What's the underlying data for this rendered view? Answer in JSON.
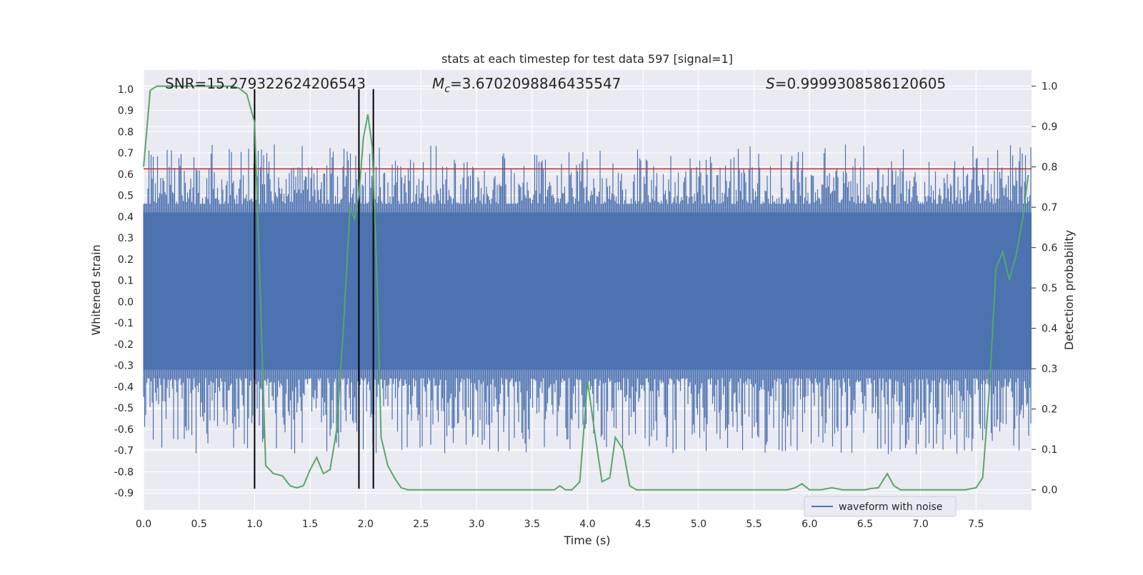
{
  "chart_data": {
    "type": "line",
    "title": "stats at each timestep for test data 597 [signal=1]",
    "xlabel": "Time (s)",
    "ylabel_left": "Whitened strain",
    "ylabel_right": "Detection probability",
    "xlim": [
      0.0,
      8.0
    ],
    "ylim_left": [
      -0.98,
      1.09
    ],
    "ylim_right": [
      -0.05,
      1.04
    ],
    "x_ticks": [
      "0.0",
      "0.5",
      "1.0",
      "1.5",
      "2.0",
      "2.5",
      "3.0",
      "3.5",
      "4.0",
      "4.5",
      "5.0",
      "5.5",
      "6.0",
      "6.5",
      "7.0",
      "7.5"
    ],
    "y_ticks_left": [
      "1.0",
      "0.9",
      "0.8",
      "0.7",
      "0.6",
      "0.5",
      "0.4",
      "0.3",
      "0.2",
      "0.1",
      "0.0",
      "-0.1",
      "-0.2",
      "-0.3",
      "-0.4",
      "-0.5",
      "-0.6",
      "-0.7",
      "-0.8",
      "-0.9"
    ],
    "y_ticks_right": [
      "1.0",
      "0.9",
      "0.8",
      "0.7",
      "0.6",
      "0.5",
      "0.4",
      "0.3",
      "0.2",
      "0.1",
      "0.0"
    ],
    "grid": true,
    "legend_placement": "lower-right",
    "annotations": {
      "snr": "SNR=15.279322624206543",
      "mc_symbol": "M",
      "mc_subscript": "c",
      "mc_value": "=3.6702098846435547",
      "s_symbol": "S",
      "s_value": "=0.9999308586120605"
    },
    "threshold": {
      "axis": "left",
      "y": 0.625,
      "color": "#d62728"
    },
    "vlines": [
      {
        "x": 1.0,
        "ymin": -0.88,
        "ymax": 1.0
      },
      {
        "x": 1.94,
        "ymin": -0.88,
        "ymax": 1.0
      },
      {
        "x": 2.07,
        "ymin": -0.88,
        "ymax": 1.0
      }
    ],
    "series": [
      {
        "name": "waveform with noise",
        "axis": "left",
        "color": "#4c72b0",
        "kind": "noise",
        "dense_band": [
          -0.32,
          0.42
        ],
        "spike_max": 1.0,
        "spike_min": -0.88
      },
      {
        "axis": "right",
        "color": "#55a868",
        "x": [
          0.0,
          0.06,
          0.12,
          0.2,
          0.3,
          0.5,
          0.7,
          0.8,
          0.86,
          0.93,
          1.0,
          1.05,
          1.1,
          1.17,
          1.25,
          1.32,
          1.38,
          1.44,
          1.5,
          1.56,
          1.62,
          1.68,
          1.74,
          1.8,
          1.86,
          1.9,
          1.94,
          1.98,
          2.02,
          2.06,
          2.1,
          2.14,
          2.2,
          2.26,
          2.32,
          2.38,
          2.45,
          2.6,
          2.75,
          2.9,
          3.1,
          3.3,
          3.5,
          3.7,
          3.75,
          3.8,
          3.86,
          3.93,
          4.0,
          4.06,
          4.13,
          4.2,
          4.25,
          4.32,
          4.38,
          4.44,
          4.5,
          4.6,
          4.8,
          5.0,
          5.2,
          5.4,
          5.6,
          5.8,
          5.87,
          5.93,
          6.0,
          6.1,
          6.2,
          6.3,
          6.4,
          6.5,
          6.55,
          6.62,
          6.7,
          6.76,
          6.82,
          6.9,
          6.95,
          7.05,
          7.2,
          7.3,
          7.4,
          7.5,
          7.56,
          7.62,
          7.68,
          7.74,
          7.8,
          7.86,
          7.92,
          7.97
        ],
        "values": [
          0.8,
          0.99,
          1.0,
          1.0,
          1.0,
          1.0,
          1.0,
          1.0,
          0.995,
          0.98,
          0.91,
          0.5,
          0.06,
          0.04,
          0.035,
          0.01,
          0.005,
          0.01,
          0.05,
          0.08,
          0.04,
          0.05,
          0.15,
          0.4,
          0.7,
          0.67,
          0.73,
          0.87,
          0.93,
          0.85,
          0.55,
          0.13,
          0.06,
          0.03,
          0.005,
          0.0,
          0.0,
          0.0,
          0.0,
          0.0,
          0.0,
          0.0,
          0.0,
          0.0,
          0.01,
          0.0,
          0.0,
          0.02,
          0.27,
          0.15,
          0.02,
          0.03,
          0.13,
          0.1,
          0.01,
          0.0,
          0.0,
          0.0,
          0.0,
          0.0,
          0.0,
          0.0,
          0.0,
          0.0,
          0.005,
          0.015,
          0.0,
          0.0,
          0.005,
          0.0,
          0.0,
          0.0,
          0.003,
          0.005,
          0.04,
          0.01,
          0.0,
          0.0,
          0.0,
          0.0,
          0.0,
          0.0,
          0.0,
          0.005,
          0.03,
          0.25,
          0.55,
          0.59,
          0.52,
          0.58,
          0.67,
          0.78
        ]
      }
    ]
  }
}
